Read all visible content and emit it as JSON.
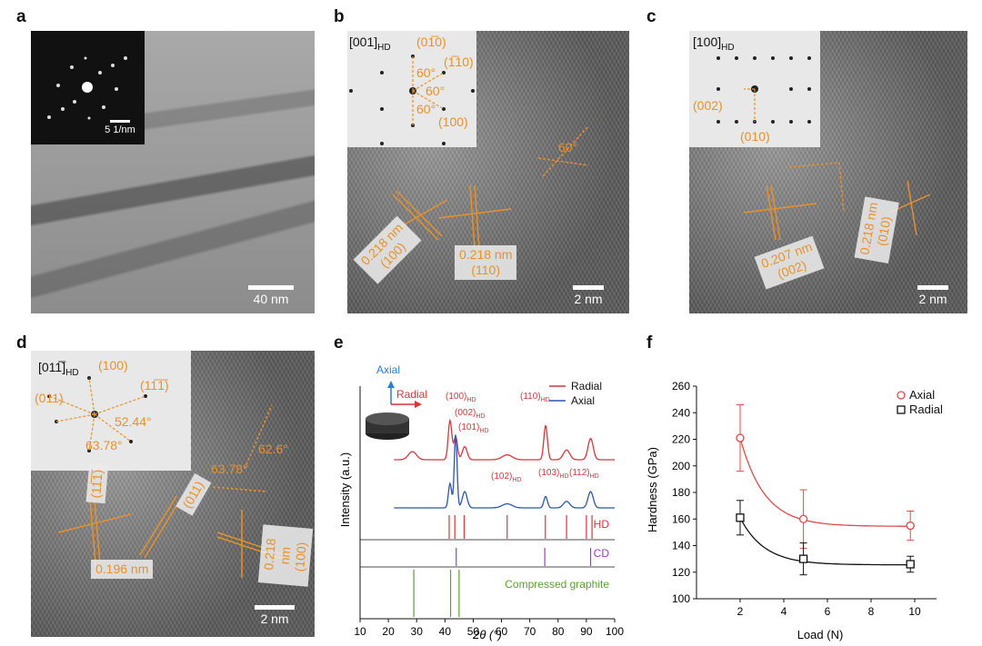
{
  "panels": {
    "a": {
      "label": "a",
      "scale": "40 nm",
      "saed_scale": "5 1/nm"
    },
    "b": {
      "label": "b",
      "scale": "2 nm",
      "zone": "[001]",
      "zone_sub": "HD",
      "spots": [
        "(01̅0)",
        "(1̅10)",
        "(100)"
      ],
      "angles": [
        "60°",
        "60°",
        "60°",
        "60°"
      ],
      "tags": [
        {
          "d": "0.218 nm",
          "hkl": "(100)"
        },
        {
          "d": "0.218 nm",
          "hkl": "(110)"
        }
      ]
    },
    "c": {
      "label": "c",
      "scale": "2 nm",
      "zone": "[100]",
      "zone_sub": "HD",
      "spots": [
        "(002)",
        "(010)"
      ],
      "tags": [
        {
          "d": "0.207 nm",
          "hkl": "(002)"
        },
        {
          "d": "0.218 nm",
          "hkl": "(010)"
        }
      ]
    },
    "d": {
      "label": "d",
      "scale": "2 nm",
      "zone": "[011̅]",
      "zone_sub": "HD",
      "spots": [
        "(100)",
        "(011)",
        "(11̅1̅)"
      ],
      "angles": [
        "52.44°",
        "63.78°",
        "63.78°",
        "62.6°"
      ],
      "tags": [
        "(11̅1̅)",
        "(011)",
        "0.196 nm",
        "0.218 nm",
        "(100)"
      ]
    },
    "e": {
      "label": "e",
      "f_label": "f"
    },
    "f": {
      "label": "f"
    }
  },
  "chart_data": [
    {
      "type": "line",
      "panel": "e",
      "xlabel": "2θ (°)",
      "ylabel": "Intensity (a.u.)",
      "xlim": [
        10,
        100
      ],
      "x_ticks": [
        10,
        20,
        30,
        40,
        50,
        60,
        70,
        80,
        90,
        100
      ],
      "legend": [
        "Radial",
        "Axial"
      ],
      "legend_position": "top-right",
      "series_colors": {
        "Radial": "#d9363b",
        "Axial": "#2a55b0"
      },
      "arrow_labels": {
        "axial": "Axial",
        "radial": "Radial"
      },
      "peak_labels": [
        "(100)HD",
        "(002)HD",
        "(101)HD",
        "(102)HD",
        "(110)HD",
        "(103)HD",
        "(112)HD"
      ],
      "reference_labels": [
        "HD",
        "CD",
        "Compressed graphite"
      ],
      "reference_colors": {
        "HD": "#d9363b",
        "CD": "#9b3fb5",
        "Compressed graphite": "#5aa02c"
      },
      "reference_lines": {
        "HD": [
          41.5,
          43.5,
          46.8,
          62,
          75.5,
          83,
          90,
          92
        ],
        "CD": [
          44,
          75.3,
          91.5
        ],
        "Compressed graphite": [
          29,
          42,
          45
        ]
      }
    },
    {
      "type": "line",
      "panel": "f",
      "xlabel": "Load (N)",
      "ylabel": "Hardness (GPa)",
      "xlim": [
        0,
        11
      ],
      "ylim": [
        100,
        260
      ],
      "x_ticks": [
        2,
        4,
        6,
        8,
        10
      ],
      "y_ticks": [
        100,
        120,
        140,
        160,
        180,
        200,
        220,
        240,
        260
      ],
      "legend_position": "top-right",
      "series": [
        {
          "name": "Axial",
          "color": "#e04a4a",
          "marker": "circle",
          "x": [
            2,
            4.9,
            9.8
          ],
          "y": [
            221,
            160,
            155
          ],
          "err": [
            25,
            22,
            11
          ]
        },
        {
          "name": "Radial",
          "color": "#111111",
          "marker": "square",
          "x": [
            2,
            4.9,
            9.8
          ],
          "y": [
            161,
            130,
            126
          ],
          "err": [
            13,
            12,
            6
          ]
        }
      ]
    }
  ]
}
